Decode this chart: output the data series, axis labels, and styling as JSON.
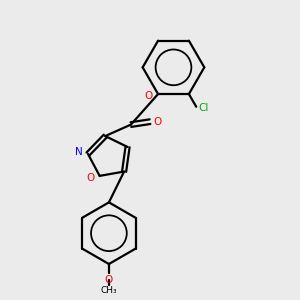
{
  "background_color": "#ebebeb",
  "bond_color": "#000000",
  "atom_colors": {
    "O": "#ff0000",
    "N": "#0000ff",
    "Cl": "#00aa00",
    "C": "#000000"
  },
  "figsize": [
    3.0,
    3.0
  ],
  "dpi": 100,
  "xlim": [
    0,
    10
  ],
  "ylim": [
    0,
    10
  ]
}
